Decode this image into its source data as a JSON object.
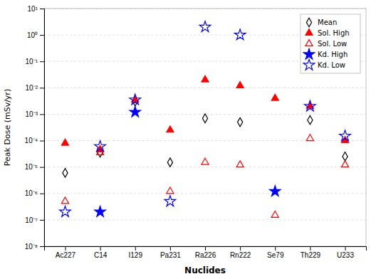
{
  "chart_data": {
    "type": "scatter",
    "x_label": "Nuclides",
    "y_label": "Peak Dose (mSv/yr)",
    "categories": [
      "Ac227",
      "C14",
      "I129",
      "Pa231",
      "Ra226",
      "Rn222",
      "Se79",
      "Th229",
      "U233"
    ],
    "series": [
      {
        "name": "Mean",
        "color": "black",
        "marker": "diamond-open",
        "values": [
          6e-06,
          3.5e-05,
          0.003,
          1.5e-05,
          0.0007,
          0.0005,
          null,
          0.0006,
          2.5e-05
        ]
      },
      {
        "name": "Sol. High",
        "color": "red",
        "marker": "triangle-up",
        "values": [
          8e-05,
          4.5e-05,
          0.0035,
          0.00025,
          0.02,
          0.012,
          0.004,
          0.002,
          0.0001
        ]
      },
      {
        "name": "Sol. Low",
        "color": "red",
        "marker": "triangle-up-open",
        "values": [
          5e-07,
          3.5e-05,
          null,
          1.2e-06,
          1.5e-05,
          1.2e-05,
          1.5e-07,
          0.00012,
          1.2e-05
        ]
      },
      {
        "name": "Kd. High",
        "color": "blue",
        "marker": "star",
        "values": [
          null,
          2e-07,
          0.0012,
          null,
          null,
          null,
          1.2e-06,
          null,
          null
        ]
      },
      {
        "name": "Kd. Low",
        "color": "blue",
        "marker": "star-open",
        "values": [
          2e-07,
          6e-05,
          0.0035,
          5e-07,
          2.0,
          1.0,
          null,
          0.002,
          0.00015
        ]
      }
    ],
    "log": "y",
    "ylim": [
      1e-08,
      10
    ],
    "yticks": [
      {
        "value": 1e-08,
        "label": "10⁻⁸"
      },
      {
        "value": 1e-07,
        "label": "10⁻⁷"
      },
      {
        "value": 1e-06,
        "label": "10⁻⁶"
      },
      {
        "value": 1e-05,
        "label": "10⁻⁵"
      },
      {
        "value": 0.0001,
        "label": "10⁻⁴"
      },
      {
        "value": 0.001,
        "label": "10⁻³"
      },
      {
        "value": 0.01,
        "label": "10⁻²"
      },
      {
        "value": 0.1,
        "label": "10⁻¹"
      },
      {
        "value": 1,
        "label": "10⁰"
      },
      {
        "value": 10,
        "label": "10¹"
      }
    ],
    "grid": true,
    "legend": "upper-right"
  }
}
